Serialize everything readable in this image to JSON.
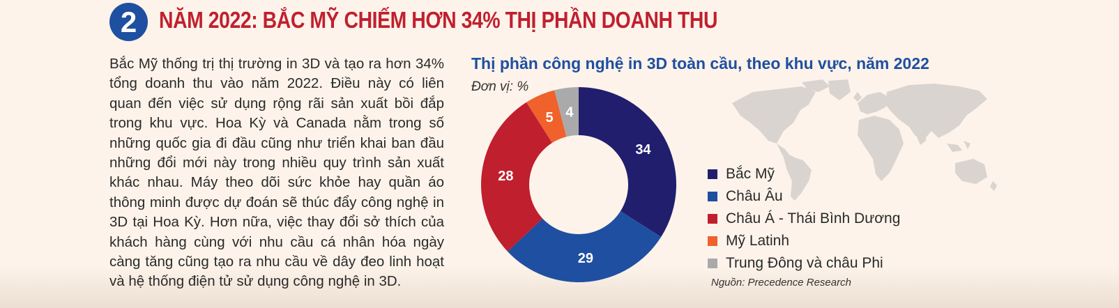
{
  "header": {
    "number": "2",
    "title": "NĂM 2022: BẮC MỸ CHIẾM HƠN 34% THỊ PHẦN DOANH THU"
  },
  "body": {
    "paragraph": "Bắc Mỹ thống trị thị trường in 3D và tạo ra hơn 34% tổng doanh thu vào năm 2022. Điều này có liên quan đến việc sử dụng rộng rãi sản xuất bồi đắp trong khu vực. Hoa Kỳ và Canada nằm trong số những quốc gia đi đầu cũng như triển khai ban đầu những đổi mới này trong nhiều quy trình sản xuất khác nhau. Máy theo dõi sức khỏe hay quần áo thông minh được dự đoán sẽ thúc đẩy công nghệ in 3D tại Hoa Kỳ. Hơn nữa, việc thay đổi sở thích của khách hàng cùng với nhu cầu cá nhân hóa ngày càng tăng cũng tạo ra nhu cầu về dây đeo linh hoạt và hệ thống điện tử sử dụng công nghệ in 3D."
  },
  "chart_data": {
    "type": "pie",
    "style": "donut",
    "title": "Thị phần công nghệ in 3D toàn cầu, theo khu vực, năm 2022",
    "unit": "Đơn vị: %",
    "categories": [
      "Bắc Mỹ",
      "Châu Âu",
      "Châu Á - Thái Bình Dương",
      "Mỹ Latinh",
      "Trung Đông và châu Phi"
    ],
    "values": [
      34,
      29,
      28,
      5,
      4
    ],
    "colors": [
      "#211e6e",
      "#1f4fa0",
      "#c01f2e",
      "#f0612c",
      "#aaaaaa"
    ],
    "legend_position": "right",
    "source": "Nguồn: Precedence Research"
  }
}
